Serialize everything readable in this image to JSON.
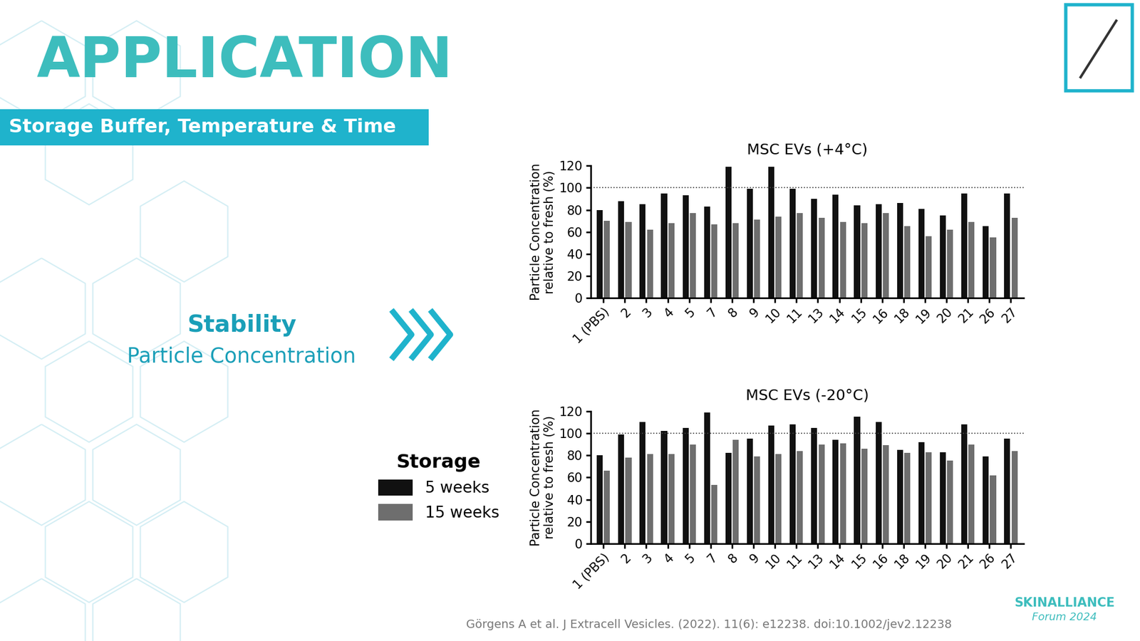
{
  "slide": {
    "title": "APPLICATION",
    "subtitle": "Storage Buffer, Temperature & Time",
    "heading": "Stability",
    "subheading": "Particle Concentration",
    "legend_title": "Storage",
    "citation": "Görgens A et al. J Extracell Vesicles. (2022). 11(6): e12238. doi:10.1002/jev2.12238",
    "logo": {
      "name": "SKINALLIANCE",
      "event": "Forum 2024"
    }
  },
  "chart_data": [
    {
      "type": "bar",
      "title": "MSC EVs (+4°C)",
      "y_label": "Particle Concentration\nrelative to fresh (%)",
      "categories": [
        "1 (PBS)",
        "2",
        "3",
        "4",
        "5",
        "7",
        "8",
        "9",
        "10",
        "11",
        "13",
        "14",
        "15",
        "16",
        "18",
        "19",
        "20",
        "21",
        "26",
        "27"
      ],
      "series": [
        {
          "name": "5 weeks",
          "color": "#111111",
          "values": [
            80,
            88,
            85,
            95,
            93,
            83,
            119,
            99,
            119,
            99,
            90,
            94,
            84,
            85,
            86,
            81,
            75,
            95,
            65,
            95
          ]
        },
        {
          "name": "15 weeks",
          "color": "#6e6e6e",
          "values": [
            70,
            69,
            62,
            68,
            77,
            67,
            68,
            71,
            74,
            77,
            73,
            69,
            68,
            77,
            65,
            56,
            62,
            69,
            55,
            73
          ]
        }
      ],
      "reference_line": 100,
      "ylim": [
        0,
        120
      ],
      "yticks": [
        0,
        20,
        40,
        60,
        80,
        100,
        120
      ],
      "grid": false
    },
    {
      "type": "bar",
      "title": "MSC EVs (-20°C)",
      "y_label": "Particle Concentration\nrelative to fresh (%)",
      "categories": [
        "1 (PBS)",
        "2",
        "3",
        "4",
        "5",
        "7",
        "8",
        "9",
        "10",
        "11",
        "13",
        "14",
        "15",
        "16",
        "18",
        "19",
        "20",
        "21",
        "26",
        "27"
      ],
      "series": [
        {
          "name": "5 weeks",
          "color": "#111111",
          "values": [
            80,
            99,
            110,
            102,
            105,
            119,
            82,
            95,
            107,
            108,
            105,
            94,
            115,
            110,
            85,
            92,
            83,
            108,
            79,
            95
          ]
        },
        {
          "name": "15 weeks",
          "color": "#6e6e6e",
          "values": [
            66,
            78,
            81,
            81,
            90,
            53,
            94,
            79,
            81,
            84,
            90,
            91,
            86,
            89,
            82,
            83,
            75,
            90,
            62,
            84
          ]
        }
      ],
      "reference_line": 100,
      "ylim": [
        0,
        120
      ],
      "yticks": [
        0,
        20,
        40,
        60,
        80,
        100,
        120
      ],
      "grid": false
    }
  ]
}
